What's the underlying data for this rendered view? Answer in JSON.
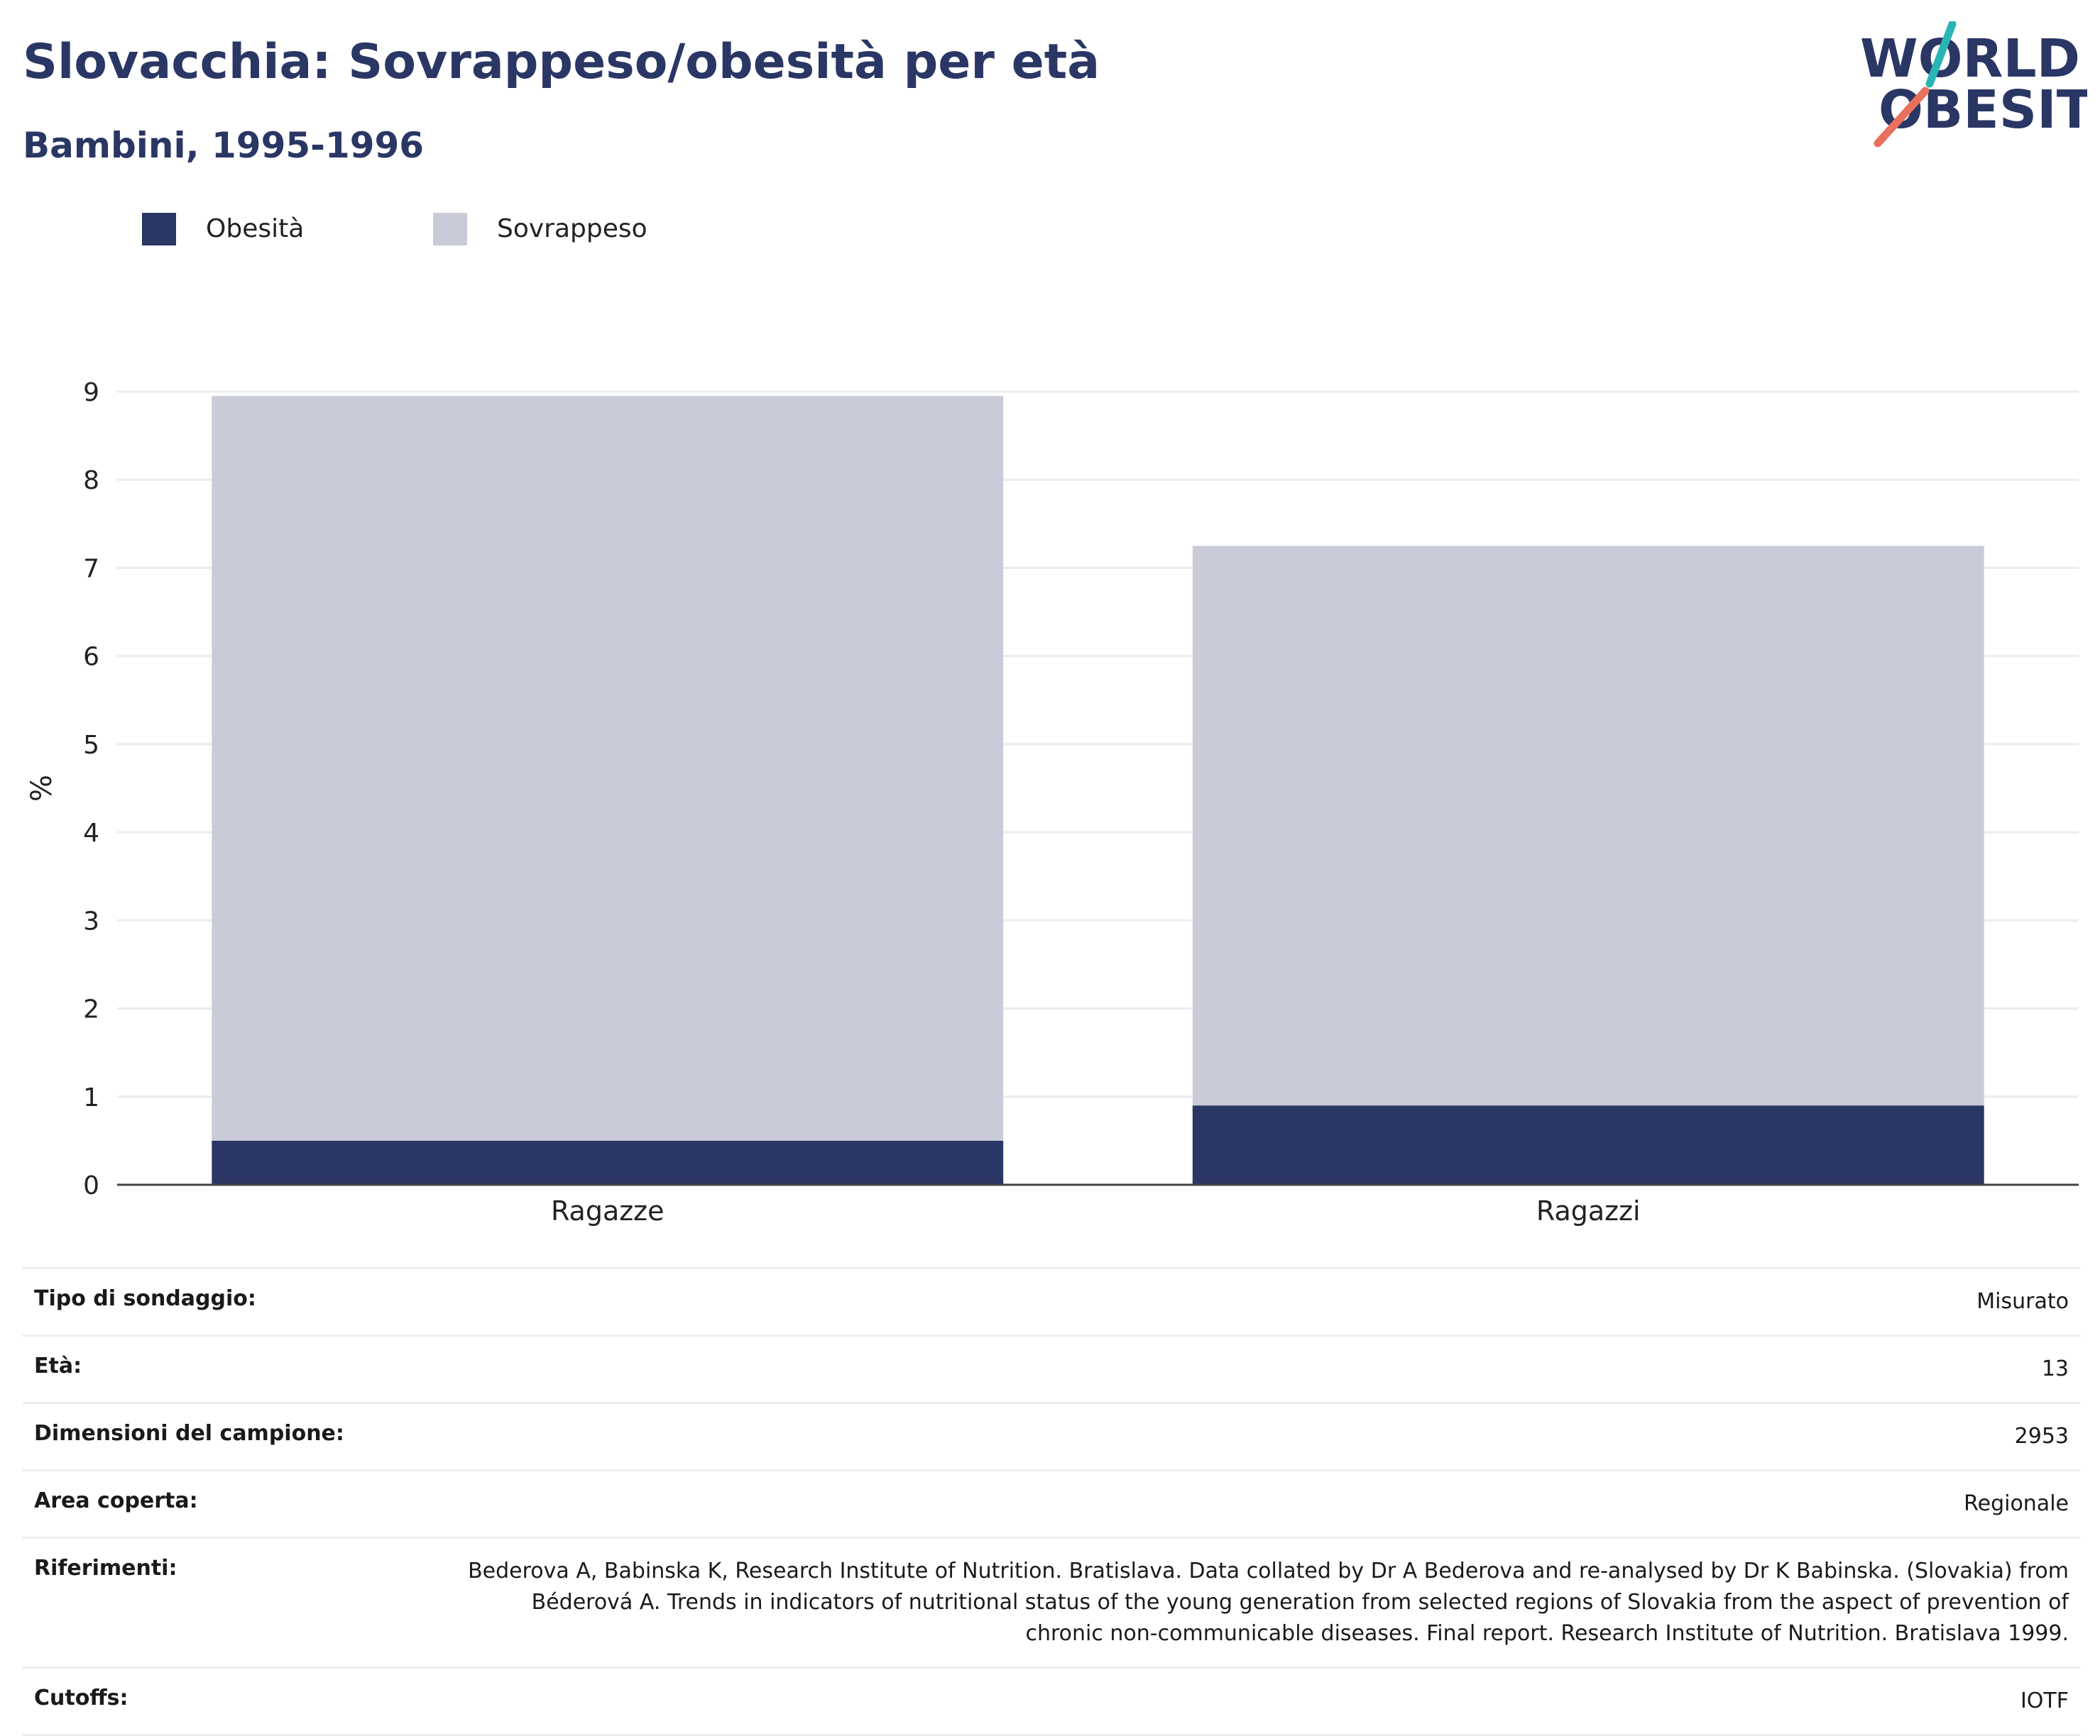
{
  "title": "Slovacchia: Sovrappeso/obesità per età",
  "subtitle": "Bambini, 1995-1996",
  "logo": {
    "line1": "WORLD",
    "line2": "OBESITY"
  },
  "colors": {
    "obesity": "#2a3664",
    "overweight": "#c9ccd8",
    "text": "#2a3664",
    "logo_teal": "#2ab5b4",
    "logo_coral": "#e8705c"
  },
  "legend": [
    {
      "label": "Obesità",
      "color": "#2a3664"
    },
    {
      "label": "Sovrappeso",
      "color": "#c9ccd8"
    }
  ],
  "chart_data": {
    "type": "bar",
    "stacked": true,
    "categories": [
      "Ragazze",
      "Ragazzi"
    ],
    "series": [
      {
        "name": "Obesità",
        "values": [
          0.5,
          0.9
        ],
        "color": "#2a3664"
      },
      {
        "name": "Sovrappeso",
        "values": [
          8.45,
          6.35
        ],
        "color": "#c9ccd8"
      }
    ],
    "ylabel": "%",
    "ylim": [
      0,
      9
    ],
    "yticks": [
      0,
      1,
      2,
      3,
      4,
      5,
      6,
      7,
      8,
      9
    ],
    "grid": true,
    "legend_position": "top-left"
  },
  "info": [
    {
      "key": "Tipo di sondaggio:",
      "value": "Misurato"
    },
    {
      "key": "Età:",
      "value": "13"
    },
    {
      "key": "Dimensioni del campione:",
      "value": "2953"
    },
    {
      "key": "Area coperta:",
      "value": "Regionale"
    },
    {
      "key": "Riferimenti:",
      "value": "Bederova A, Babinska K, Research Institute of Nutrition. Bratislava. Data collated by Dr A Bederova and re-analysed by Dr K Babinska. (Slovakia) from Béderová A. Trends in indicators of nutritional status of the young generation from selected regions of Slovakia from the aspect of prevention of chronic non-communicable diseases. Final report. Research Institute of Nutrition. Bratislava 1999."
    },
    {
      "key": "Cutoffs:",
      "value": "IOTF"
    }
  ]
}
